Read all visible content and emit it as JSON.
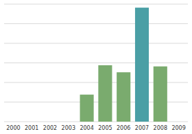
{
  "chart_data": {
    "type": "bar",
    "categories": [
      "2000",
      "2001",
      "2002",
      "2003",
      "2004",
      "2005",
      "2006",
      "2007",
      "2008",
      "2009"
    ],
    "values": [
      0,
      0,
      0,
      0,
      23,
      48,
      42,
      97,
      47,
      0
    ],
    "colors": [
      "#7aab6e",
      "#7aab6e",
      "#7aab6e",
      "#7aab6e",
      "#7aab6e",
      "#7aab6e",
      "#7aab6e",
      "#4a9fa5",
      "#7aab6e",
      "#7aab6e"
    ],
    "ylim": [
      0,
      100
    ],
    "yticks": [
      0,
      16.666666666666668,
      33.333333333333336,
      50,
      66.66666666666667,
      83.33333333333334,
      100
    ],
    "grid": true,
    "tick_labels": "x"
  }
}
